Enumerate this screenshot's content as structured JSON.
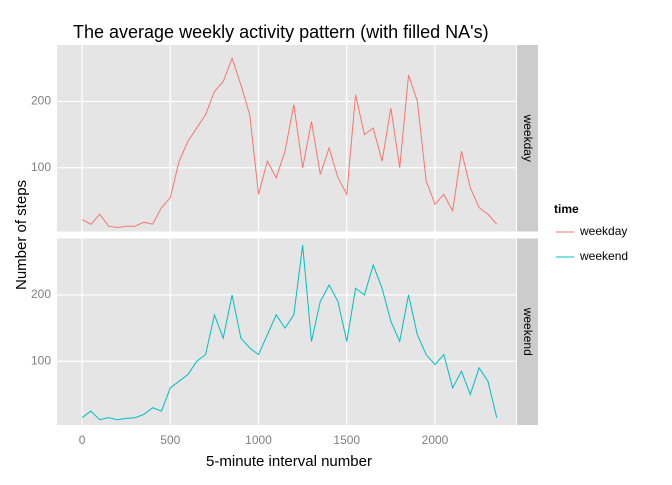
{
  "chart_data": {
    "type": "line",
    "title": "The average weekly activity pattern (with filled NA's)",
    "xlabel": "5-minute interval number",
    "ylabel": "Number of steps",
    "legend_title": "time",
    "legend_position": "right",
    "facet": "rows",
    "grid": true,
    "x": [
      0,
      50,
      100,
      150,
      200,
      250,
      300,
      350,
      400,
      450,
      500,
      550,
      600,
      650,
      700,
      750,
      800,
      850,
      900,
      950,
      1000,
      1050,
      1100,
      1150,
      1200,
      1250,
      1300,
      1350,
      1400,
      1450,
      1500,
      1550,
      1600,
      1650,
      1700,
      1750,
      1800,
      1850,
      1900,
      1950,
      2000,
      2050,
      2100,
      2150,
      2200,
      2250,
      2300,
      2350
    ],
    "series": [
      {
        "name": "weekday",
        "color": "#f8766d",
        "values": [
          22,
          15,
          30,
          12,
          10,
          12,
          12,
          18,
          15,
          40,
          55,
          110,
          140,
          160,
          180,
          215,
          230,
          265,
          225,
          180,
          60,
          110,
          85,
          125,
          195,
          100,
          170,
          90,
          130,
          85,
          60,
          210,
          150,
          160,
          110,
          190,
          100,
          240,
          200,
          80,
          45,
          60,
          35,
          125,
          70,
          40,
          30,
          15
        ]
      },
      {
        "name": "weekend",
        "color": "#00bfc4",
        "values": [
          15,
          25,
          12,
          15,
          12,
          14,
          15,
          20,
          30,
          25,
          60,
          70,
          80,
          100,
          110,
          170,
          135,
          200,
          135,
          120,
          110,
          140,
          170,
          150,
          170,
          275,
          130,
          190,
          215,
          190,
          130,
          210,
          200,
          245,
          210,
          160,
          130,
          200,
          140,
          110,
          95,
          110,
          60,
          85,
          50,
          90,
          70,
          15
        ]
      }
    ],
    "xlim": [
      -142,
      2459
    ],
    "ylim": [
      4,
      285
    ],
    "xticks": [
      0,
      500,
      1000,
      1500,
      2000
    ],
    "yticks": [
      100,
      200
    ]
  }
}
